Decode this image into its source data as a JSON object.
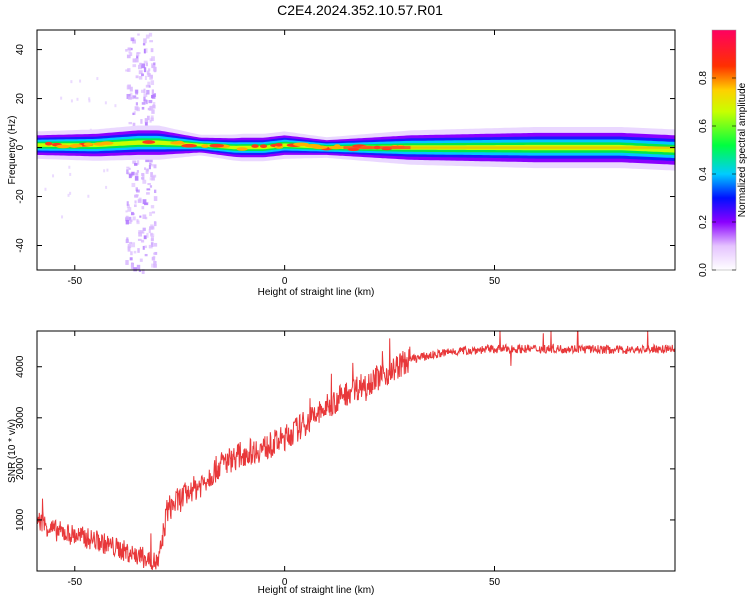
{
  "title": "C2E4.2024.352.10.57.R01",
  "colors": {
    "signal": "#e8383a",
    "frame": "#000000"
  },
  "chart_data": [
    {
      "type": "heatmap",
      "xlabel": "Height of straight line (km)",
      "ylabel": "Frequency (Hz)",
      "xlim": [
        -59,
        93
      ],
      "ylim": [
        -50,
        48
      ],
      "xticks": [
        -50,
        0,
        50
      ],
      "yticks": [
        -40,
        -20,
        0,
        20,
        40
      ],
      "colorbar": {
        "label": "Normalized spectral amplitude",
        "range": [
          0,
          1
        ],
        "ticks": [
          "0.0",
          "0.2",
          "0.4",
          "0.6",
          "0.8"
        ]
      },
      "band_center_hz": [
        [
          -59,
          1
        ],
        [
          -45,
          1
        ],
        [
          -35,
          2
        ],
        [
          -30,
          2
        ],
        [
          -20,
          1
        ],
        [
          -12,
          0
        ],
        [
          -5,
          0
        ],
        [
          0,
          1
        ],
        [
          5,
          0.5
        ],
        [
          10,
          0
        ],
        [
          20,
          0
        ],
        [
          40,
          0
        ],
        [
          60,
          0
        ],
        [
          80,
          0
        ],
        [
          93,
          -1
        ]
      ],
      "band_halfwidth_hz": [
        [
          -59,
          4
        ],
        [
          -35,
          5
        ],
        [
          -30,
          5
        ],
        [
          -20,
          3
        ],
        [
          -10,
          4
        ],
        [
          0,
          4
        ],
        [
          10,
          3
        ],
        [
          30,
          5
        ],
        [
          60,
          6
        ],
        [
          93,
          6
        ]
      ],
      "noise_region_x": [
        -38,
        -31
      ]
    },
    {
      "type": "line",
      "xlabel": "Height of straight line (km)",
      "ylabel": "SNR (10 * v/v)",
      "xlim": [
        -59,
        93
      ],
      "ylim": [
        0,
        4700
      ],
      "xticks": [
        -50,
        0,
        50
      ],
      "yticks": [
        1000,
        2000,
        3000,
        4000
      ],
      "series": [
        {
          "points": [
            [
              -59,
              1000
            ],
            [
              -55,
              800
            ],
            [
              -50,
              700
            ],
            [
              -45,
              600
            ],
            [
              -40,
              450
            ],
            [
              -35,
              300
            ],
            [
              -30,
              150
            ],
            [
              -28,
              1200
            ],
            [
              -25,
              1400
            ],
            [
              -20,
              1700
            ],
            [
              -15,
              2100
            ],
            [
              -10,
              2300
            ],
            [
              -5,
              2400
            ],
            [
              0,
              2600
            ],
            [
              5,
              2900
            ],
            [
              10,
              3200
            ],
            [
              15,
              3500
            ],
            [
              20,
              3700
            ],
            [
              25,
              3900
            ],
            [
              30,
              4150
            ],
            [
              40,
              4300
            ],
            [
              50,
              4350
            ],
            [
              60,
              4350
            ],
            [
              70,
              4350
            ],
            [
              80,
              4330
            ],
            [
              93,
              4350
            ]
          ]
        }
      ]
    }
  ]
}
